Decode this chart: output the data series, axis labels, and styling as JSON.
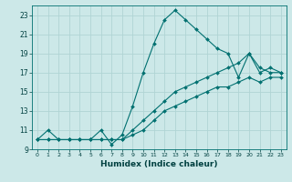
{
  "xlabel": "Humidex (Indice chaleur)",
  "bg_color": "#cce8e8",
  "grid_color": "#b0d4d4",
  "line_color": "#007070",
  "marker_color": "#007070",
  "xlim": [
    -0.5,
    23.5
  ],
  "ylim": [
    9,
    24
  ],
  "yticks": [
    9,
    11,
    13,
    15,
    17,
    19,
    21,
    23
  ],
  "xticks": [
    0,
    1,
    2,
    3,
    4,
    5,
    6,
    7,
    8,
    9,
    10,
    11,
    12,
    13,
    14,
    15,
    16,
    17,
    18,
    19,
    20,
    21,
    22,
    23
  ],
  "series": [
    {
      "x": [
        0,
        1,
        2,
        3,
        4,
        5,
        6,
        7,
        8,
        9,
        10,
        11,
        12,
        13,
        14,
        15,
        16,
        17,
        18,
        19,
        20,
        21,
        22,
        23
      ],
      "y": [
        10,
        11,
        10,
        10,
        10,
        10,
        11,
        9.5,
        10.5,
        13.5,
        17,
        20,
        22.5,
        23.5,
        22.5,
        21.5,
        20.5,
        19.5,
        19,
        16.5,
        19,
        17.5,
        17,
        17
      ]
    },
    {
      "x": [
        0,
        1,
        2,
        3,
        4,
        5,
        6,
        7,
        8,
        9,
        10,
        11,
        12,
        13,
        14,
        15,
        16,
        17,
        18,
        19,
        20,
        21,
        22,
        23
      ],
      "y": [
        10,
        10,
        10,
        10,
        10,
        10,
        10,
        10,
        10,
        11,
        12,
        13,
        14,
        15,
        15.5,
        16,
        16.5,
        17,
        17.5,
        18,
        19,
        17,
        17.5,
        17
      ]
    },
    {
      "x": [
        0,
        1,
        2,
        3,
        4,
        5,
        6,
        7,
        8,
        9,
        10,
        11,
        12,
        13,
        14,
        15,
        16,
        17,
        18,
        19,
        20,
        21,
        22,
        23
      ],
      "y": [
        10,
        10,
        10,
        10,
        10,
        10,
        10,
        10,
        10,
        10.5,
        11,
        12,
        13,
        13.5,
        14,
        14.5,
        15,
        15.5,
        15.5,
        16,
        16.5,
        16,
        16.5,
        16.5
      ]
    }
  ]
}
